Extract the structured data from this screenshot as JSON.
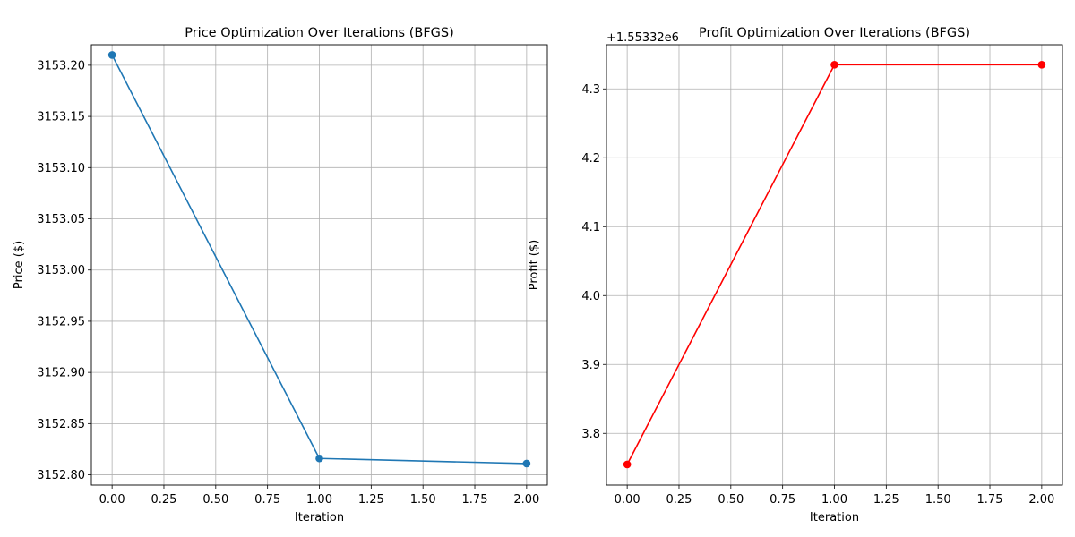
{
  "chart_data": [
    {
      "type": "line",
      "title": "Price Optimization Over Iterations (BFGS)",
      "xlabel": "Iteration",
      "ylabel": "Price ($)",
      "xlim": [
        -0.1,
        2.1
      ],
      "ylim": [
        3152.79,
        3153.22
      ],
      "x_ticks": [
        0.0,
        0.25,
        0.5,
        0.75,
        1.0,
        1.25,
        1.5,
        1.75,
        2.0
      ],
      "x_tick_labels": [
        "0.00",
        "0.25",
        "0.50",
        "0.75",
        "1.00",
        "1.25",
        "1.50",
        "1.75",
        "2.00"
      ],
      "y_ticks": [
        3152.8,
        3152.85,
        3152.9,
        3152.95,
        3153.0,
        3153.05,
        3153.1,
        3153.15,
        3153.2
      ],
      "y_tick_labels": [
        "3152.80",
        "3152.85",
        "3152.90",
        "3152.95",
        "3153.00",
        "3153.05",
        "3153.10",
        "3153.15",
        "3153.20"
      ],
      "offset_text": "",
      "grid": true,
      "series": [
        {
          "x": [
            0,
            1,
            2
          ],
          "values": [
            3153.21,
            3152.816,
            3152.811
          ],
          "color": "#1f77b4",
          "marker": "circle"
        }
      ]
    },
    {
      "type": "line",
      "title": "Profit Optimization Over Iterations (BFGS)",
      "xlabel": "Iteration",
      "ylabel": "Profit ($)",
      "xlim": [
        -0.1,
        2.1
      ],
      "ylim": [
        3.725,
        4.364
      ],
      "x_ticks": [
        0.0,
        0.25,
        0.5,
        0.75,
        1.0,
        1.25,
        1.5,
        1.75,
        2.0
      ],
      "x_tick_labels": [
        "0.00",
        "0.25",
        "0.50",
        "0.75",
        "1.00",
        "1.25",
        "1.50",
        "1.75",
        "2.00"
      ],
      "y_ticks": [
        3.8,
        3.9,
        4.0,
        4.1,
        4.2,
        4.3
      ],
      "y_tick_labels": [
        "3.8",
        "3.9",
        "4.0",
        "4.1",
        "4.2",
        "4.3"
      ],
      "offset_text": "+1.55332e6",
      "grid": true,
      "series": [
        {
          "x": [
            0,
            1,
            2
          ],
          "values": [
            3.755,
            4.335,
            4.335
          ],
          "color": "#ff0000",
          "marker": "circle"
        }
      ]
    }
  ]
}
